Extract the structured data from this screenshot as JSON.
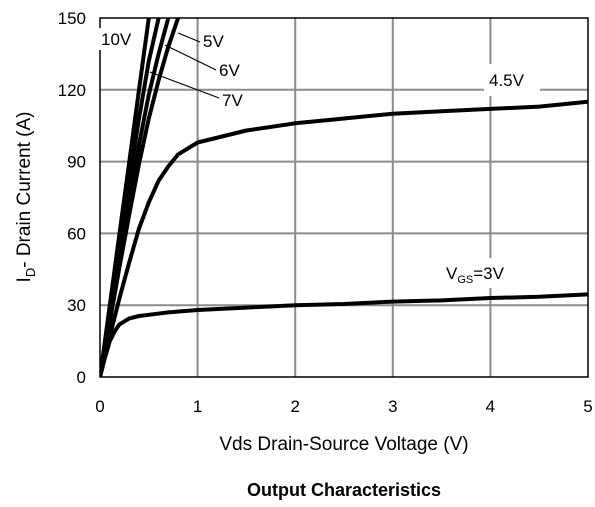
{
  "chart_data": {
    "type": "line",
    "title": "Output Characteristics",
    "xlabel": "Vds Drain-Source Voltage (V)",
    "ylabel_main": "I",
    "ylabel_sub": "D",
    "ylabel_rest": "- Drain Current (A)",
    "xlim": [
      0,
      5
    ],
    "ylim": [
      0,
      150
    ],
    "xticks": [
      "0",
      "1",
      "2",
      "3",
      "4",
      "5"
    ],
    "yticks": [
      "0",
      "30",
      "60",
      "90",
      "120",
      "150"
    ],
    "grid": true,
    "series": [
      {
        "label": "10V",
        "x": [
          0,
          0.1,
          0.2,
          0.3,
          0.4,
          0.5
        ],
        "y": [
          0,
          30,
          60,
          90,
          120,
          150
        ]
      },
      {
        "label": "7V",
        "x": [
          0,
          0.1,
          0.2,
          0.3,
          0.4,
          0.5,
          0.6
        ],
        "y": [
          0,
          27,
          55,
          82,
          108,
          132,
          150
        ]
      },
      {
        "label": "6V",
        "x": [
          0,
          0.1,
          0.2,
          0.3,
          0.4,
          0.5,
          0.6,
          0.7
        ],
        "y": [
          0,
          25,
          50,
          74,
          97,
          118,
          135,
          150
        ]
      },
      {
        "label": "5V",
        "x": [
          0,
          0.1,
          0.2,
          0.3,
          0.4,
          0.5,
          0.6,
          0.7,
          0.8
        ],
        "y": [
          0,
          23,
          46,
          68,
          89,
          108,
          124,
          138,
          150
        ]
      },
      {
        "label": "4.5V",
        "x": [
          0,
          0.1,
          0.2,
          0.3,
          0.4,
          0.5,
          0.6,
          0.7,
          0.8,
          1.0,
          1.5,
          2.0,
          2.5,
          3.0,
          3.5,
          4.0,
          4.5,
          5.0
        ],
        "y": [
          0,
          17,
          33,
          48,
          62,
          73,
          82,
          88,
          93,
          98,
          103,
          106,
          108,
          110,
          111,
          112,
          113,
          115
        ]
      },
      {
        "label_main": "V",
        "label_sub": "GS",
        "label_rest": "=3V",
        "x": [
          0,
          0.05,
          0.1,
          0.15,
          0.2,
          0.3,
          0.4,
          0.5,
          0.7,
          1.0,
          1.5,
          2.0,
          2.5,
          3.0,
          3.5,
          4.0,
          4.5,
          5.0
        ],
        "y": [
          0,
          8,
          15,
          19,
          22,
          24.5,
          25.5,
          26,
          27,
          28,
          29,
          30,
          30.5,
          31.5,
          32,
          33,
          33.5,
          34.5
        ]
      }
    ]
  }
}
